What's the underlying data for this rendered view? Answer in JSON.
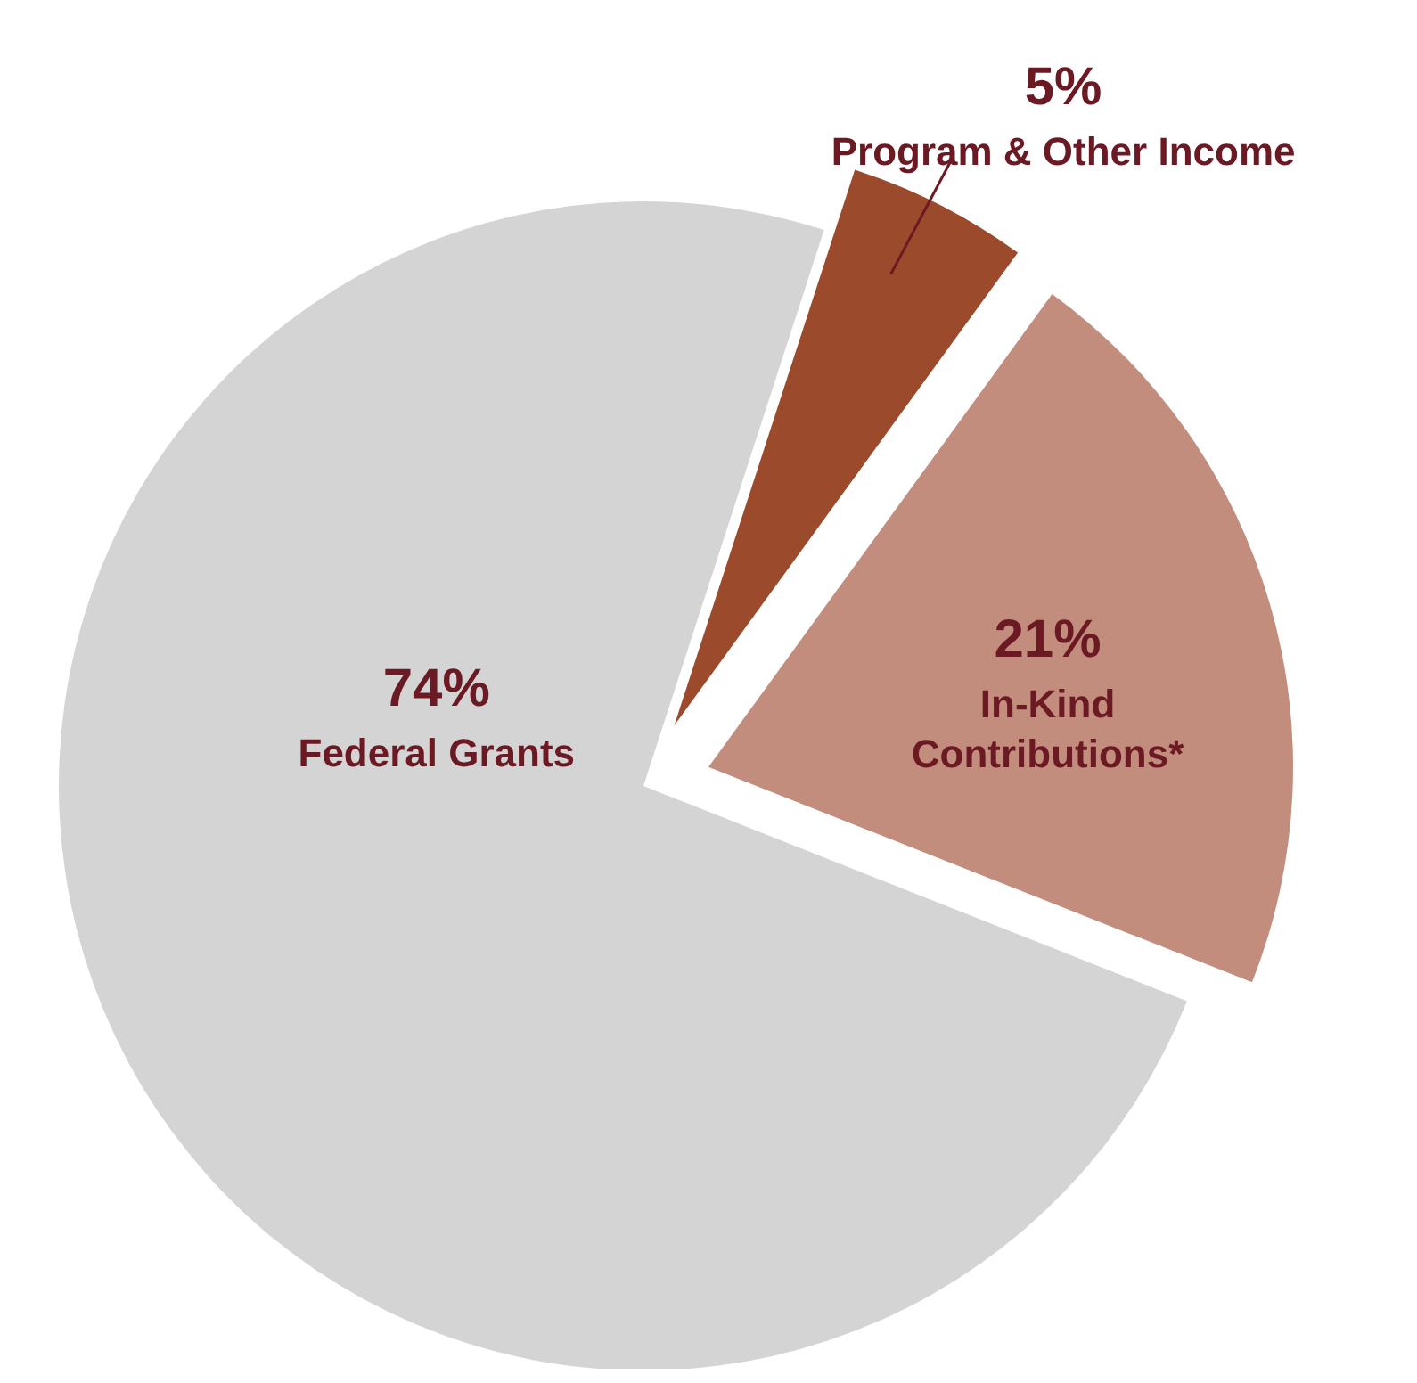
{
  "chart_data": {
    "type": "pie",
    "categories": [
      "Program & Other Income",
      "In-Kind Contributions*",
      "Federal Grants"
    ],
    "values": [
      5,
      21,
      74
    ],
    "colors": [
      "#9b4a2c",
      "#c28d7c",
      "#d4d4d4"
    ],
    "value_labels": [
      "5%",
      "21%",
      "74%"
    ]
  }
}
